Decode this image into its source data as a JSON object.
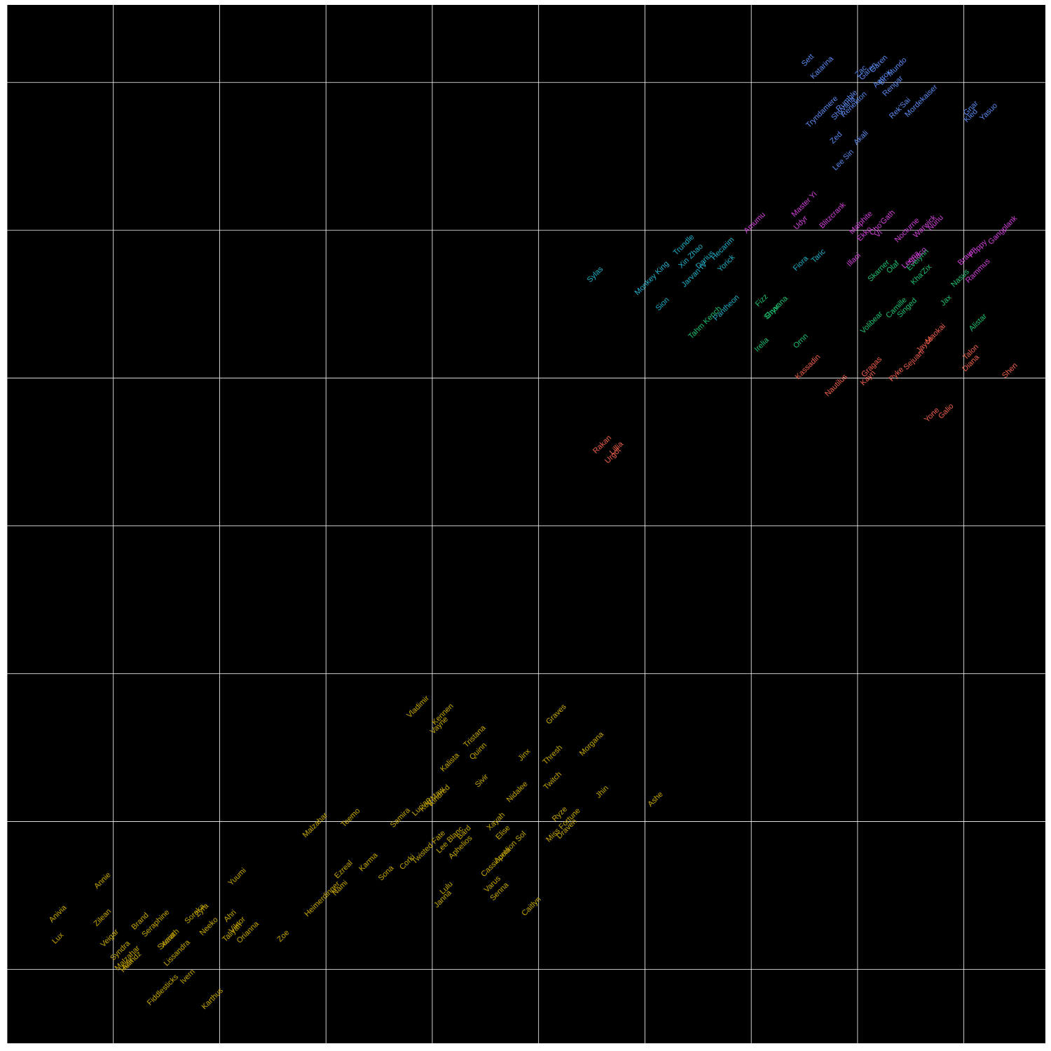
{
  "chart_data": {
    "type": "scatter",
    "title": "",
    "xlabel": "",
    "ylabel": "",
    "xlim": [
      0,
      14.65
    ],
    "ylim": [
      0,
      14.05
    ],
    "grid": true,
    "background": "#000000",
    "grid_color": "#ffffff",
    "series": [
      {
        "color": "#C8A800",
        "points": [
          {
            "x": 0.72,
            "y": 1.42,
            "label": "Lux"
          },
          {
            "x": 0.72,
            "y": 1.75,
            "label": "Anivia"
          },
          {
            "x": 1.35,
            "y": 2.2,
            "label": "Annie"
          },
          {
            "x": 1.35,
            "y": 1.7,
            "label": "Zilean"
          },
          {
            "x": 1.45,
            "y": 1.42,
            "label": "Veigar"
          },
          {
            "x": 1.6,
            "y": 1.25,
            "label": "Syndra"
          },
          {
            "x": 1.7,
            "y": 1.15,
            "label": "Malzahar"
          },
          {
            "x": 1.7,
            "y": 1.07,
            "label": "Azir"
          },
          {
            "x": 1.75,
            "y": 1.1,
            "label": "Heimdz"
          },
          {
            "x": 1.88,
            "y": 1.65,
            "label": "Brand"
          },
          {
            "x": 2.1,
            "y": 1.62,
            "label": "Seraphine"
          },
          {
            "x": 2.3,
            "y": 1.42,
            "label": "Xerath"
          },
          {
            "x": 2.25,
            "y": 1.38,
            "label": "Swain"
          },
          {
            "x": 2.4,
            "y": 1.22,
            "label": "Lissandra"
          },
          {
            "x": 2.2,
            "y": 0.72,
            "label": "Fiddlesticks"
          },
          {
            "x": 2.55,
            "y": 0.9,
            "label": "Ivern"
          },
          {
            "x": 2.65,
            "y": 1.75,
            "label": "Soraka"
          },
          {
            "x": 2.75,
            "y": 1.8,
            "label": "Zyra"
          },
          {
            "x": 2.85,
            "y": 1.58,
            "label": "Neeko"
          },
          {
            "x": 3.15,
            "y": 1.72,
            "label": "Ahri"
          },
          {
            "x": 3.25,
            "y": 1.6,
            "label": "Viktor"
          },
          {
            "x": 3.18,
            "y": 1.5,
            "label": "Taliyah"
          },
          {
            "x": 3.4,
            "y": 1.5,
            "label": "Orianna"
          },
          {
            "x": 3.25,
            "y": 2.25,
            "label": "Yuumi"
          },
          {
            "x": 2.9,
            "y": 0.6,
            "label": "Karthus"
          },
          {
            "x": 3.9,
            "y": 1.45,
            "label": "Zoe"
          },
          {
            "x": 4.35,
            "y": 2.95,
            "label": "Malzahar"
          },
          {
            "x": 4.45,
            "y": 1.95,
            "label": "Heimerdinger"
          },
          {
            "x": 4.7,
            "y": 2.1,
            "label": "Nami"
          },
          {
            "x": 4.75,
            "y": 2.35,
            "label": "Ezreal"
          },
          {
            "x": 4.85,
            "y": 3.05,
            "label": "Teemo"
          },
          {
            "x": 5.1,
            "y": 2.45,
            "label": "Karma"
          },
          {
            "x": 5.35,
            "y": 2.3,
            "label": "Sona"
          },
          {
            "x": 5.55,
            "y": 3.05,
            "label": "Samira"
          },
          {
            "x": 5.65,
            "y": 2.45,
            "label": "Corki"
          },
          {
            "x": 5.95,
            "y": 2.65,
            "label": "Twisted Fate"
          },
          {
            "x": 6.25,
            "y": 2.75,
            "label": "Lee Blanc"
          },
          {
            "x": 5.85,
            "y": 3.2,
            "label": "Lucian"
          },
          {
            "x": 6.0,
            "y": 3.3,
            "label": "Kog'Maw"
          },
          {
            "x": 6.1,
            "y": 3.35,
            "label": "Kindred"
          },
          {
            "x": 5.8,
            "y": 4.55,
            "label": "Vladimir"
          },
          {
            "x": 6.1,
            "y": 4.3,
            "label": "Vayne"
          },
          {
            "x": 6.15,
            "y": 4.45,
            "label": "Kennen"
          },
          {
            "x": 6.25,
            "y": 3.8,
            "label": "Kalista"
          },
          {
            "x": 6.6,
            "y": 4.15,
            "label": "Tristana"
          },
          {
            "x": 6.65,
            "y": 3.95,
            "label": "Quinn"
          },
          {
            "x": 6.7,
            "y": 3.55,
            "label": "Sivir"
          },
          {
            "x": 6.45,
            "y": 2.85,
            "label": "Bard"
          },
          {
            "x": 6.4,
            "y": 2.65,
            "label": "Aphelios"
          },
          {
            "x": 6.2,
            "y": 2.1,
            "label": "Lulu"
          },
          {
            "x": 6.15,
            "y": 1.95,
            "label": "Janna"
          },
          {
            "x": 6.9,
            "y": 2.45,
            "label": "Cassiopeia"
          },
          {
            "x": 6.85,
            "y": 2.15,
            "label": "Varus"
          },
          {
            "x": 6.95,
            "y": 2.05,
            "label": "Senna"
          },
          {
            "x": 6.9,
            "y": 3.0,
            "label": "Xayah"
          },
          {
            "x": 7.0,
            "y": 2.85,
            "label": "Elise"
          },
          {
            "x": 7.2,
            "y": 3.4,
            "label": "Nidalee"
          },
          {
            "x": 7.1,
            "y": 2.65,
            "label": "Aurelion Sol"
          },
          {
            "x": 7.3,
            "y": 3.9,
            "label": "Jinx"
          },
          {
            "x": 7.4,
            "y": 1.85,
            "label": "Caitlyn"
          },
          {
            "x": 7.7,
            "y": 3.9,
            "label": "Thresh"
          },
          {
            "x": 7.7,
            "y": 3.55,
            "label": "Twitch"
          },
          {
            "x": 7.75,
            "y": 4.45,
            "label": "Graves"
          },
          {
            "x": 7.8,
            "y": 3.1,
            "label": "Ryze"
          },
          {
            "x": 7.85,
            "y": 2.95,
            "label": "Miss Fortune"
          },
          {
            "x": 7.9,
            "y": 2.9,
            "label": "Draven"
          },
          {
            "x": 8.25,
            "y": 4.05,
            "label": "Morgana"
          },
          {
            "x": 8.4,
            "y": 3.4,
            "label": "Jhin"
          },
          {
            "x": 9.15,
            "y": 3.3,
            "label": "Ashe"
          }
        ]
      },
      {
        "color": "#F0604A",
        "points": [
          {
            "x": 8.4,
            "y": 8.1,
            "label": "Rakan"
          },
          {
            "x": 8.6,
            "y": 8.05,
            "label": "Lillia"
          },
          {
            "x": 8.55,
            "y": 7.95,
            "label": "Urgot"
          },
          {
            "x": 11.3,
            "y": 9.15,
            "label": "Kassadin"
          },
          {
            "x": 11.7,
            "y": 8.9,
            "label": "Nautilus"
          },
          {
            "x": 12.2,
            "y": 9.15,
            "label": "Gragas"
          },
          {
            "x": 12.15,
            "y": 9.0,
            "label": "Kayn"
          },
          {
            "x": 12.55,
            "y": 9.05,
            "label": "Pyke"
          },
          {
            "x": 12.8,
            "y": 9.25,
            "label": "Sejuani"
          },
          {
            "x": 12.95,
            "y": 9.45,
            "label": "Jayce"
          },
          {
            "x": 13.1,
            "y": 9.6,
            "label": "Maokai"
          },
          {
            "x": 13.05,
            "y": 8.5,
            "label": "Yone"
          },
          {
            "x": 13.25,
            "y": 8.55,
            "label": "Galio"
          },
          {
            "x": 13.6,
            "y": 9.35,
            "label": "Talon"
          },
          {
            "x": 13.6,
            "y": 9.2,
            "label": "Diana"
          },
          {
            "x": 14.15,
            "y": 9.1,
            "label": "Shen"
          }
        ]
      },
      {
        "color": "#1DC070",
        "points": [
          {
            "x": 9.85,
            "y": 9.75,
            "label": "Tahm Kench"
          },
          {
            "x": 10.65,
            "y": 9.45,
            "label": "Irelia"
          },
          {
            "x": 10.65,
            "y": 10.05,
            "label": "Fizz"
          },
          {
            "x": 10.8,
            "y": 9.9,
            "label": "Gnar"
          },
          {
            "x": 10.85,
            "y": 9.95,
            "label": "Shyvana"
          },
          {
            "x": 11.2,
            "y": 9.5,
            "label": "Ornn"
          },
          {
            "x": 12.2,
            "y": 9.75,
            "label": "Volibear"
          },
          {
            "x": 12.3,
            "y": 10.45,
            "label": "Skarner"
          },
          {
            "x": 12.5,
            "y": 10.5,
            "label": "Olaf"
          },
          {
            "x": 12.55,
            "y": 9.95,
            "label": "Camille"
          },
          {
            "x": 12.7,
            "y": 9.95,
            "label": "Singed"
          },
          {
            "x": 12.85,
            "y": 10.6,
            "label": "Evelynn"
          },
          {
            "x": 12.9,
            "y": 10.4,
            "label": "Kha'Zix"
          },
          {
            "x": 13.25,
            "y": 10.05,
            "label": "Jax"
          },
          {
            "x": 13.45,
            "y": 10.35,
            "label": "Nasus"
          },
          {
            "x": 13.7,
            "y": 9.75,
            "label": "Alistar"
          }
        ]
      },
      {
        "color": "#1EB0C8",
        "points": [
          {
            "x": 8.3,
            "y": 10.4,
            "label": "Sylas"
          },
          {
            "x": 9.1,
            "y": 10.35,
            "label": "Monkey King"
          },
          {
            "x": 9.25,
            "y": 10.0,
            "label": "Sion"
          },
          {
            "x": 9.55,
            "y": 10.8,
            "label": "Trundle"
          },
          {
            "x": 9.65,
            "y": 10.65,
            "label": "Xin Zhao"
          },
          {
            "x": 9.7,
            "y": 10.4,
            "label": "Jarvan IV"
          },
          {
            "x": 9.85,
            "y": 10.6,
            "label": "Darius"
          },
          {
            "x": 10.1,
            "y": 10.75,
            "label": "Hecarim"
          },
          {
            "x": 10.15,
            "y": 10.55,
            "label": "Yorick"
          },
          {
            "x": 10.15,
            "y": 9.95,
            "label": "Pantheon"
          },
          {
            "x": 11.2,
            "y": 10.55,
            "label": "Fiora"
          },
          {
            "x": 11.45,
            "y": 10.65,
            "label": "Taric"
          }
        ]
      },
      {
        "color": "#5A8AF0",
        "points": [
          {
            "x": 11.3,
            "y": 13.3,
            "label": "Sett"
          },
          {
            "x": 11.5,
            "y": 13.2,
            "label": "Katarina"
          },
          {
            "x": 12.05,
            "y": 13.15,
            "label": "Zac"
          },
          {
            "x": 12.15,
            "y": 13.15,
            "label": "Garen"
          },
          {
            "x": 12.3,
            "y": 13.25,
            "label": "Garen"
          },
          {
            "x": 12.5,
            "y": 13.15,
            "label": "Dr. Mundo"
          },
          {
            "x": 12.35,
            "y": 13.05,
            "label": "Aatrox"
          },
          {
            "x": 12.5,
            "y": 12.95,
            "label": "Rengar"
          },
          {
            "x": 11.5,
            "y": 12.6,
            "label": "Tryndamere"
          },
          {
            "x": 11.85,
            "y": 12.75,
            "label": "Rumble"
          },
          {
            "x": 11.8,
            "y": 12.65,
            "label": "Shyvana"
          },
          {
            "x": 11.95,
            "y": 12.7,
            "label": "Renekton"
          },
          {
            "x": 12.6,
            "y": 12.65,
            "label": "Rek'Sai"
          },
          {
            "x": 12.9,
            "y": 12.75,
            "label": "Mordekaiser"
          },
          {
            "x": 13.6,
            "y": 12.65,
            "label": "Gnar"
          },
          {
            "x": 13.6,
            "y": 12.55,
            "label": "Kled"
          },
          {
            "x": 13.85,
            "y": 12.6,
            "label": "Yasuo"
          },
          {
            "x": 11.7,
            "y": 12.25,
            "label": "Zed"
          },
          {
            "x": 12.05,
            "y": 12.25,
            "label": "Akali"
          },
          {
            "x": 11.8,
            "y": 11.95,
            "label": "Lee Sin"
          }
        ]
      },
      {
        "color": "#D040D8",
        "points": [
          {
            "x": 10.55,
            "y": 11.1,
            "label": "Amumu"
          },
          {
            "x": 11.25,
            "y": 11.35,
            "label": "Master Yi"
          },
          {
            "x": 11.2,
            "y": 11.1,
            "label": "Udyr"
          },
          {
            "x": 11.65,
            "y": 11.2,
            "label": "Blitzcrank"
          },
          {
            "x": 12.05,
            "y": 11.1,
            "label": "Malphite"
          },
          {
            "x": 12.1,
            "y": 10.95,
            "label": "Ekko"
          },
          {
            "x": 12.35,
            "y": 11.1,
            "label": "Cho'Gath"
          },
          {
            "x": 12.3,
            "y": 10.95,
            "label": "Vi"
          },
          {
            "x": 12.7,
            "y": 11.0,
            "label": "Nocturne"
          },
          {
            "x": 12.95,
            "y": 11.05,
            "label": "Warwick"
          },
          {
            "x": 13.1,
            "y": 11.1,
            "label": "Nunu"
          },
          {
            "x": 13.7,
            "y": 10.75,
            "label": "Poppy"
          },
          {
            "x": 13.55,
            "y": 10.65,
            "label": "Braum"
          },
          {
            "x": 14.05,
            "y": 11.0,
            "label": "Gangplank"
          },
          {
            "x": 11.95,
            "y": 10.6,
            "label": "Illaoi"
          },
          {
            "x": 12.75,
            "y": 10.6,
            "label": "Leona"
          },
          {
            "x": 12.85,
            "y": 10.65,
            "label": "Shaco"
          },
          {
            "x": 13.7,
            "y": 10.45,
            "label": "Rammus"
          }
        ]
      }
    ]
  }
}
